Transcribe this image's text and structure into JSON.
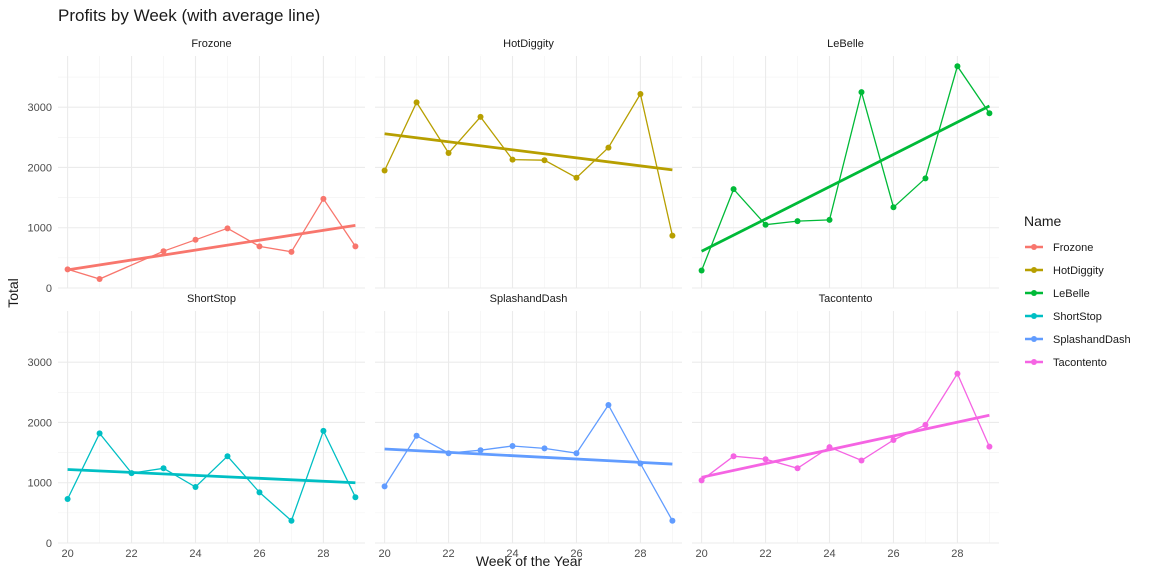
{
  "chart_data": {
    "type": "line",
    "title": "Profits by Week (with average line)",
    "xlabel": "Week of the Year",
    "ylabel": "Total",
    "xlim": [
      19.7,
      29.3
    ],
    "ylim": [
      0,
      3850
    ],
    "x_ticks": [
      20,
      22,
      24,
      26,
      28
    ],
    "y_ticks": [
      0,
      1000,
      2000,
      3000
    ],
    "grid": true,
    "legend_position": "right",
    "legend_title": "Name",
    "x": [
      20,
      21,
      22,
      23,
      24,
      25,
      26,
      27,
      28,
      29
    ],
    "series": [
      {
        "name": "Frozone",
        "color": "#F8766D",
        "values": [
          310,
          150,
          null,
          610,
          800,
          990,
          690,
          600,
          1480,
          690
        ],
        "trend": [
          300,
          1040
        ]
      },
      {
        "name": "HotDiggity",
        "color": "#B79F00",
        "values": [
          1950,
          3080,
          2240,
          2840,
          2130,
          2120,
          1830,
          2330,
          3220,
          870
        ],
        "trend": [
          2560,
          1960
        ]
      },
      {
        "name": "LeBelle",
        "color": "#00BA38",
        "values": [
          290,
          1640,
          1050,
          1110,
          1130,
          3250,
          1340,
          1820,
          3680,
          2900
        ],
        "trend": [
          610,
          3020
        ]
      },
      {
        "name": "ShortStop",
        "color": "#00BFC4",
        "values": [
          730,
          1820,
          1160,
          1240,
          930,
          1440,
          840,
          370,
          1860,
          760
        ],
        "trend": [
          1220,
          1000
        ]
      },
      {
        "name": "SplashandDash",
        "color": "#619CFF",
        "values": [
          940,
          1780,
          1490,
          1540,
          1610,
          1570,
          1490,
          2290,
          1320,
          370
        ],
        "trend": [
          1560,
          1310
        ]
      },
      {
        "name": "Tacontento",
        "color": "#F564E3",
        "values": [
          1040,
          1440,
          1390,
          1240,
          1590,
          1370,
          1710,
          1960,
          2810,
          1600
        ],
        "trend": [
          1090,
          2120
        ]
      }
    ]
  }
}
